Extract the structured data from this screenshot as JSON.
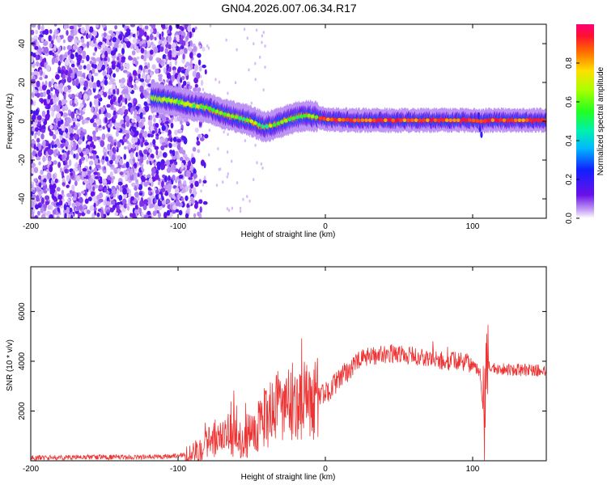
{
  "title": "GN04.2026.007.06.34.R17",
  "chart_data": [
    {
      "type": "heatmap",
      "name": "spectrogram",
      "xlabel": "Height of straight line (km)",
      "ylabel": "Frequency (Hz)",
      "xlim": [
        -200,
        150
      ],
      "ylim": [
        -50,
        50
      ],
      "xticks": [
        -200,
        -100,
        0,
        100
      ],
      "yticks": [
        -40,
        -20,
        0,
        20,
        40
      ],
      "colorbar": {
        "label": "Normalized spectral amplitude",
        "range": [
          0,
          1
        ],
        "ticks": [
          "0.0",
          "0.2",
          "0.4",
          "0.6",
          "0.8"
        ],
        "colormap": "rainbow (white-violet-blue-cyan-green-yellow-red-magenta)"
      },
      "ridge": [
        {
          "x": -115,
          "y": 12
        },
        {
          "x": -100,
          "y": 10
        },
        {
          "x": -90,
          "y": 8
        },
        {
          "x": -80,
          "y": 7
        },
        {
          "x": -70,
          "y": 4
        },
        {
          "x": -60,
          "y": 2
        },
        {
          "x": -50,
          "y": 0
        },
        {
          "x": -42,
          "y": -3
        },
        {
          "x": -35,
          "y": -2
        },
        {
          "x": -28,
          "y": 0
        },
        {
          "x": -20,
          "y": 2
        },
        {
          "x": -12,
          "y": 3
        },
        {
          "x": -5,
          "y": 2
        },
        {
          "x": 0,
          "y": 1
        },
        {
          "x": 20,
          "y": 0.5
        },
        {
          "x": 60,
          "y": 0.5
        },
        {
          "x": 100,
          "y": 0.5
        },
        {
          "x": 105,
          "y": 0
        },
        {
          "x": 110,
          "y": 0.5
        },
        {
          "x": 150,
          "y": 0.5
        }
      ]
    },
    {
      "type": "line",
      "name": "snr",
      "xlabel": "Height of straight line (km)",
      "ylabel": "SNR (10 * v/v)",
      "xlim": [
        -200,
        150
      ],
      "ylim": [
        0,
        7800
      ],
      "xticks": [
        -200,
        -100,
        0,
        100
      ],
      "yticks": [
        2000,
        4000,
        6000
      ],
      "color": "#ee3333",
      "series": [
        {
          "name": "SNR",
          "x": [
            -200,
            -180,
            -160,
            -140,
            -120,
            -100,
            -90,
            -85,
            -80,
            -75,
            -70,
            -65,
            -60,
            -55,
            -50,
            -45,
            -40,
            -35,
            -30,
            -25,
            -20,
            -15,
            -10,
            -5,
            0,
            5,
            10,
            15,
            20,
            25,
            30,
            40,
            50,
            60,
            70,
            80,
            90,
            100,
            105,
            108,
            110,
            112,
            115,
            120,
            130,
            140,
            150
          ],
          "y": [
            120,
            130,
            150,
            140,
            150,
            200,
            300,
            500,
            700,
            900,
            800,
            1100,
            900,
            700,
            1200,
            1500,
            1700,
            2000,
            2100,
            2300,
            2400,
            2500,
            2300,
            2600,
            2700,
            3000,
            3300,
            3600,
            3900,
            4100,
            4200,
            4300,
            4300,
            4200,
            4100,
            4000,
            4000,
            3900,
            3600,
            1500,
            3800,
            3800,
            3700,
            3700,
            3650,
            3650,
            3600
          ]
        }
      ]
    }
  ]
}
